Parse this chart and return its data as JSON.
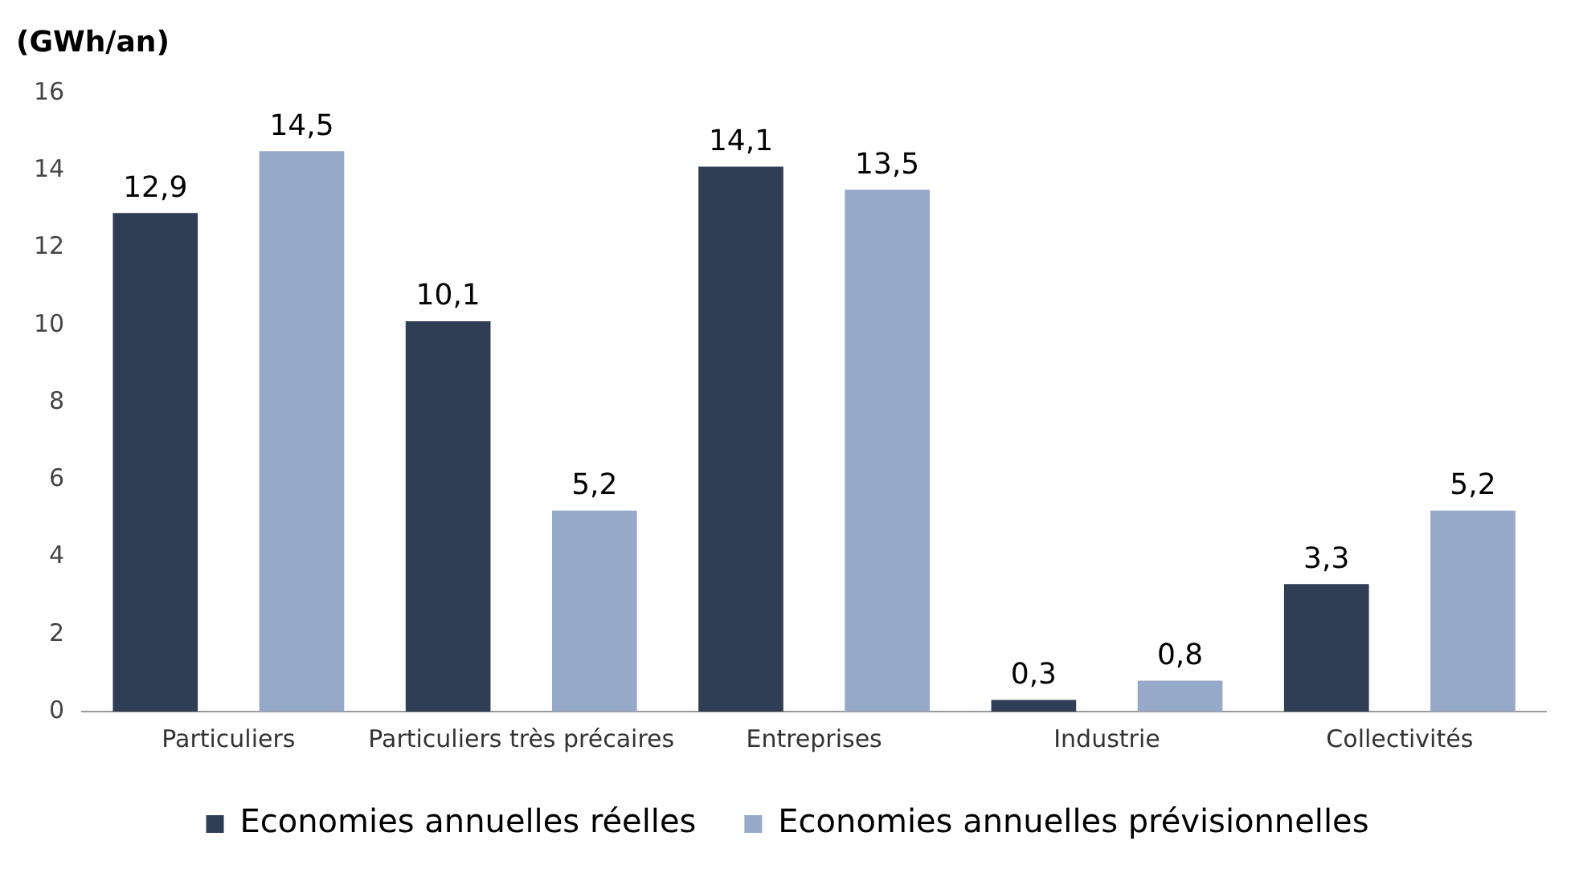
{
  "chart_data": {
    "type": "bar",
    "ylabel": "(GWh/an)",
    "categories": [
      "Particuliers",
      "Particuliers très précaires",
      "Entreprises",
      "Industrie",
      "Collectivités"
    ],
    "series": [
      {
        "name": "Economies annuelles réelles",
        "color": "#2f3d55",
        "values": [
          12.9,
          10.1,
          14.1,
          0.3,
          3.3
        ],
        "value_labels": [
          "12,9",
          "10,1",
          "14,1",
          "0,3",
          "3,3"
        ]
      },
      {
        "name": "Economies annuelles prévisionnelles",
        "color": "#97a9c9",
        "values": [
          14.5,
          5.2,
          13.5,
          0.8,
          5.2
        ],
        "value_labels": [
          "14,5",
          "5,2",
          "13,5",
          "0,8",
          "5,2"
        ]
      }
    ],
    "ylim": [
      0,
      16
    ],
    "yticks": [
      0,
      2,
      4,
      6,
      8,
      10,
      12,
      14,
      16
    ],
    "grid": false,
    "legend": "bottom"
  }
}
